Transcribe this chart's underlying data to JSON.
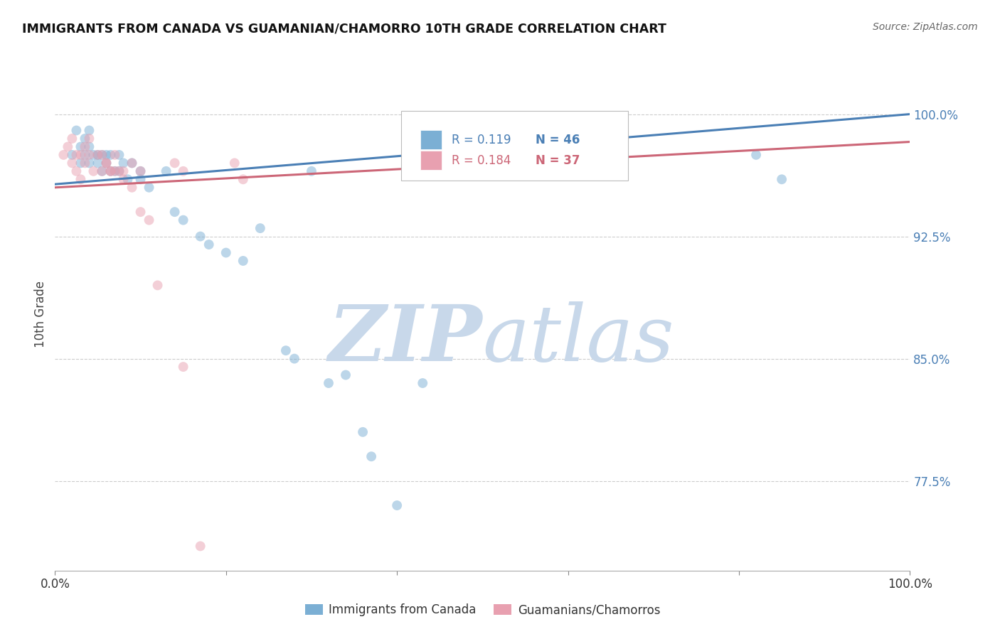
{
  "title": "IMMIGRANTS FROM CANADA VS GUAMANIAN/CHAMORRO 10TH GRADE CORRELATION CHART",
  "source": "Source: ZipAtlas.com",
  "ylabel": "10th Grade",
  "xlim": [
    0.0,
    1.0
  ],
  "ylim": [
    0.72,
    1.035
  ],
  "background_color": "#ffffff",
  "grid_color": "#cccccc",
  "blue_color": "#7bafd4",
  "pink_color": "#e8a0b0",
  "blue_line_color": "#4a7fb5",
  "pink_line_color": "#cc6677",
  "right_label_color": "#4a7fb5",
  "legend_r_blue": "0.119",
  "legend_n_blue": "46",
  "legend_r_pink": "0.184",
  "legend_n_pink": "37",
  "blue_scatter_x": [
    0.02,
    0.025,
    0.03,
    0.03,
    0.035,
    0.035,
    0.04,
    0.04,
    0.04,
    0.045,
    0.05,
    0.05,
    0.055,
    0.055,
    0.06,
    0.06,
    0.065,
    0.065,
    0.07,
    0.075,
    0.075,
    0.08,
    0.085,
    0.09,
    0.1,
    0.1,
    0.11,
    0.13,
    0.14,
    0.15,
    0.17,
    0.18,
    0.2,
    0.22,
    0.24,
    0.27,
    0.28,
    0.3,
    0.32,
    0.34,
    0.36,
    0.37,
    0.4,
    0.43,
    0.82,
    0.85
  ],
  "blue_scatter_y": [
    0.975,
    0.99,
    0.98,
    0.97,
    0.985,
    0.975,
    0.98,
    0.97,
    0.99,
    0.975,
    0.975,
    0.97,
    0.975,
    0.965,
    0.975,
    0.97,
    0.975,
    0.965,
    0.965,
    0.975,
    0.965,
    0.97,
    0.96,
    0.97,
    0.965,
    0.96,
    0.955,
    0.965,
    0.94,
    0.935,
    0.925,
    0.92,
    0.915,
    0.91,
    0.93,
    0.855,
    0.85,
    0.965,
    0.835,
    0.84,
    0.805,
    0.79,
    0.76,
    0.835,
    0.975,
    0.96
  ],
  "pink_scatter_x": [
    0.01,
    0.015,
    0.02,
    0.02,
    0.025,
    0.025,
    0.03,
    0.03,
    0.035,
    0.035,
    0.04,
    0.04,
    0.045,
    0.05,
    0.055,
    0.06,
    0.065,
    0.07,
    0.075,
    0.08,
    0.09,
    0.1,
    0.11,
    0.12,
    0.14,
    0.15,
    0.17,
    0.21,
    0.22,
    0.15,
    0.1,
    0.09,
    0.08,
    0.07,
    0.065,
    0.06,
    0.055
  ],
  "pink_scatter_y": [
    0.975,
    0.98,
    0.97,
    0.985,
    0.965,
    0.975,
    0.96,
    0.975,
    0.97,
    0.98,
    0.975,
    0.985,
    0.965,
    0.975,
    0.965,
    0.97,
    0.965,
    0.975,
    0.965,
    0.96,
    0.955,
    0.94,
    0.935,
    0.895,
    0.97,
    0.845,
    0.735,
    0.97,
    0.96,
    0.965,
    0.965,
    0.97,
    0.965,
    0.965,
    0.965,
    0.97,
    0.975
  ],
  "blue_trend_y_start": 0.957,
  "blue_trend_y_end": 1.0,
  "pink_trend_y_start": 0.955,
  "pink_trend_y_end": 0.983,
  "watermark_zip": "ZIP",
  "watermark_atlas": "atlas",
  "watermark_color": "#c8d8ea",
  "marker_size": 100
}
